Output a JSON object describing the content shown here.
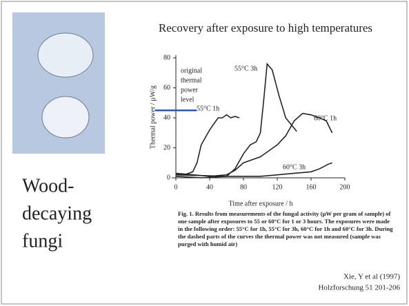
{
  "slide": {
    "title": "Recovery after exposure to high temperatures",
    "side_title_lines": [
      "Wood-",
      "decaying",
      "fungi"
    ],
    "caption": "Fig. 1. Results from measurements of the fungal activity (µW per gram of sample) of one sample after exposures to 55 or 60°C for 1 or 3 hours. The exposures were made in the following order: 55°C for 1h, 55°C for 3h, 60°C for 1h and 60°C for 3h. During the dashed parts of the curves the thermal power was not measured (sample was purged with humid air)",
    "citation_lines": [
      "Xie, Y et al (1997)",
      "Holzforschung 51 201-206"
    ]
  },
  "chart_data": {
    "type": "line",
    "x_label": "Time after exposure / h",
    "y_label": "Thermal power / µW/g",
    "annotation_lines": [
      "original",
      "thermal",
      "power",
      "level"
    ],
    "reference_level": 45,
    "reference_color": "#2255cc",
    "xlim": [
      0,
      200
    ],
    "xticks": [
      0,
      40,
      80,
      120,
      160,
      200
    ],
    "ylim": [
      0,
      80
    ],
    "yticks": [
      0,
      20,
      40,
      60,
      80
    ],
    "series": [
      {
        "name": "55°C 1h",
        "color": "#222222",
        "x": [
          0,
          5,
          10,
          20,
          25,
          30,
          40,
          50,
          55,
          60,
          65,
          70,
          75
        ],
        "values": [
          3,
          2,
          2,
          4,
          10,
          22,
          32,
          40,
          40,
          42,
          40,
          41,
          40
        ]
      },
      {
        "name": "55°C 3h",
        "color": "#222222",
        "x": [
          0,
          30,
          60,
          70,
          80,
          88,
          95,
          100,
          104,
          108,
          114,
          122,
          130,
          143
        ],
        "values": [
          1,
          0,
          1,
          6,
          16,
          22,
          24,
          30,
          52,
          76,
          72,
          55,
          40,
          31
        ]
      },
      {
        "name": "60°C 1h",
        "color": "#222222",
        "x": [
          0,
          40,
          60,
          70,
          80,
          90,
          100,
          110,
          120,
          130,
          140,
          150,
          160,
          170,
          178,
          185
        ],
        "values": [
          3,
          1,
          2,
          5,
          10,
          12,
          14,
          18,
          22,
          28,
          38,
          43,
          42,
          40,
          38,
          30
        ]
      },
      {
        "name": "60°C 3h",
        "color": "#222222",
        "x": [
          0,
          60,
          100,
          120,
          140,
          160,
          170,
          180,
          185
        ],
        "values": [
          2,
          1,
          1,
          2,
          3,
          4,
          6,
          9,
          10
        ]
      }
    ]
  }
}
